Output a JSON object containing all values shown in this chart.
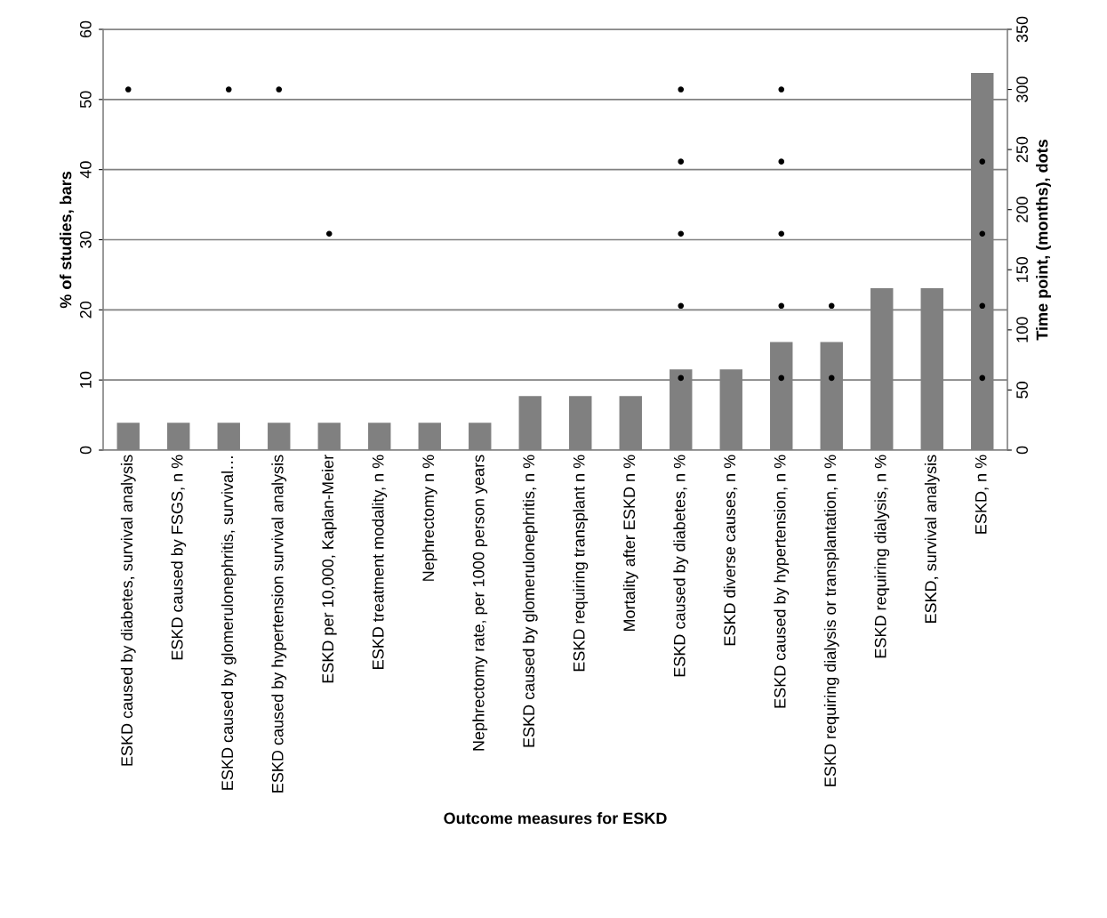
{
  "chart_data": {
    "type": "bar",
    "xlabel": "Outcome measures for ESKD",
    "ylabel": "% of studies, bars",
    "y2label": "Time point, (months), dots",
    "categories": [
      "ESKD caused by diabetes, survival analysis",
      "ESKD caused by FSGS, n %",
      "ESKD caused by glomerulonephritis, survival…",
      "ESKD caused by hypertension survival analysis",
      "ESKD per 10,000, Kaplan-Meier",
      "ESKD treatment modality, n %",
      "Nephrectomy n %",
      "Nephrectomy rate, per 1000 person years",
      "ESKD caused by glomerulonephritis, n %",
      "ESKD requiring transplant n %",
      "Mortality after ESKD n %",
      "ESKD caused by diabetes, n %",
      "ESKD diverse causes, n %",
      "ESKD caused by hypertension, n %",
      "ESKD requiring dialysis or transplantation, n %",
      "ESKD requiring dialysis, n %",
      "ESKD, survival analysis",
      "ESKD, n %"
    ],
    "series": [
      {
        "color": "#808080",
        "values": [
          3.9,
          3.9,
          3.9,
          3.9,
          3.9,
          3.9,
          3.9,
          3.9,
          7.7,
          7.7,
          7.7,
          11.5,
          11.5,
          15.4,
          15.4,
          23.1,
          23.1,
          53.8
        ]
      },
      {
        "type": "scatter",
        "axis": "y2",
        "color": "#000000",
        "values": [
          null,
          null,
          null,
          null,
          null,
          null,
          null,
          null,
          null,
          null,
          null,
          60,
          null,
          60,
          60,
          null,
          null,
          60
        ]
      },
      {
        "type": "scatter",
        "axis": "y2",
        "color": "#000000",
        "values": [
          null,
          null,
          null,
          null,
          null,
          null,
          null,
          null,
          null,
          null,
          null,
          120,
          null,
          120,
          120,
          null,
          null,
          120
        ]
      },
      {
        "type": "scatter",
        "axis": "y2",
        "color": "#000000",
        "values": [
          null,
          null,
          null,
          null,
          180,
          null,
          null,
          null,
          null,
          null,
          null,
          180,
          null,
          180,
          null,
          null,
          null,
          180
        ]
      },
      {
        "type": "scatter",
        "axis": "y2",
        "color": "#000000",
        "values": [
          null,
          null,
          null,
          null,
          null,
          null,
          null,
          null,
          null,
          null,
          null,
          240,
          null,
          240,
          null,
          null,
          null,
          240
        ]
      },
      {
        "type": "scatter",
        "axis": "y2",
        "color": "#000000",
        "values": [
          300,
          null,
          300,
          300,
          null,
          null,
          null,
          null,
          null,
          null,
          null,
          300,
          null,
          300,
          null,
          null,
          null,
          null
        ]
      }
    ],
    "ylim": [
      0,
      60
    ],
    "yticks": [
      0,
      10,
      20,
      30,
      40,
      50,
      60
    ],
    "y2lim": [
      0,
      350
    ],
    "y2ticks": [
      0,
      50,
      100,
      150,
      200,
      250,
      300,
      350
    ],
    "grid": "y",
    "marker": "circle",
    "legend": false
  }
}
